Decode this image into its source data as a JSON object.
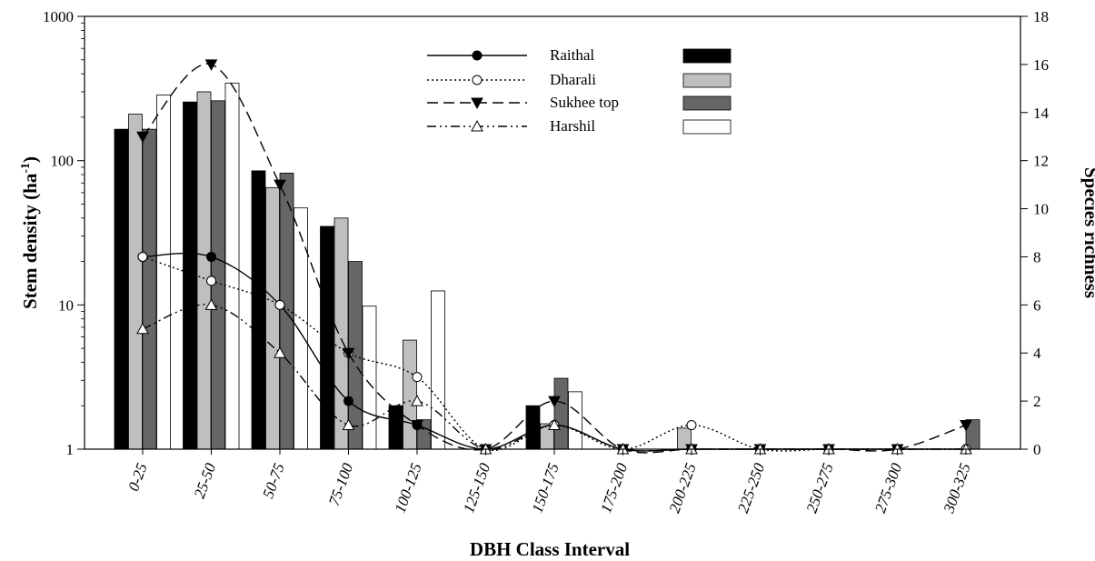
{
  "chart_data": {
    "type": "bar",
    "xlabel": "DBH Class Interval",
    "ylabel_left": "Stem density (ha",
    "ylabel_left_sup": "-1",
    "ylabel_left_close": ")",
    "ylabel_right": "Species richness",
    "left_axis": {
      "scale": "log",
      "ylim": [
        1,
        1000
      ],
      "ticks": [
        "1",
        "10",
        "100",
        "1000"
      ]
    },
    "right_axis": {
      "scale": "linear",
      "ylim": [
        0,
        18
      ],
      "ticks": [
        "0",
        "2",
        "4",
        "6",
        "8",
        "10",
        "12",
        "14",
        "16",
        "18"
      ]
    },
    "categories": [
      "0-25",
      "25-50",
      "50-75",
      "75-100",
      "100-125",
      "125-150",
      "150-175",
      "175-200",
      "200-225",
      "225-250",
      "250-275",
      "275-300",
      "300-325"
    ],
    "bar_series": [
      {
        "site": "Raithal",
        "fill": "#000000",
        "values": [
          165,
          255,
          85,
          35,
          2,
          1,
          2,
          1,
          1,
          1,
          1,
          1,
          1
        ]
      },
      {
        "site": "Dharali",
        "fill": "#bfbfbf",
        "values": [
          210,
          300,
          65,
          40,
          5.7,
          1,
          1.5,
          1,
          1.4,
          1,
          1,
          1,
          1
        ]
      },
      {
        "site": "Sukhee top",
        "fill": "#666666",
        "values": [
          165,
          260,
          82,
          20,
          1.6,
          1,
          3.1,
          1,
          1,
          1,
          1,
          1,
          1.6
        ]
      },
      {
        "site": "Harshil",
        "fill": "#ffffff",
        "values": [
          285,
          345,
          47,
          9.8,
          12.5,
          1,
          2.5,
          1,
          1,
          1,
          1,
          1,
          1
        ]
      }
    ],
    "line_series": [
      {
        "name": "Raithal",
        "marker": "filled-circle",
        "dash": "",
        "values": [
          8,
          8,
          6,
          2,
          1,
          0,
          1,
          0,
          0,
          0,
          0,
          0,
          0
        ]
      },
      {
        "name": "Dharali",
        "marker": "open-circle",
        "dash": "2,3",
        "values": [
          8,
          7,
          6,
          4,
          3,
          0,
          1,
          0,
          1,
          0,
          0,
          0,
          0
        ]
      },
      {
        "name": "Sukhee top",
        "marker": "filled-triangle-down",
        "dash": "12,6",
        "values": [
          13,
          16,
          11,
          4,
          1,
          0,
          2,
          0,
          0,
          0,
          0,
          0,
          1
        ]
      },
      {
        "name": "Harshil",
        "marker": "open-triangle-up",
        "dash": "10,4,2,4,2,4",
        "values": [
          5,
          6,
          4,
          1,
          2,
          0,
          1,
          0,
          0,
          0,
          0,
          0,
          0
        ]
      }
    ],
    "legend": {
      "placement": "top-center"
    }
  }
}
